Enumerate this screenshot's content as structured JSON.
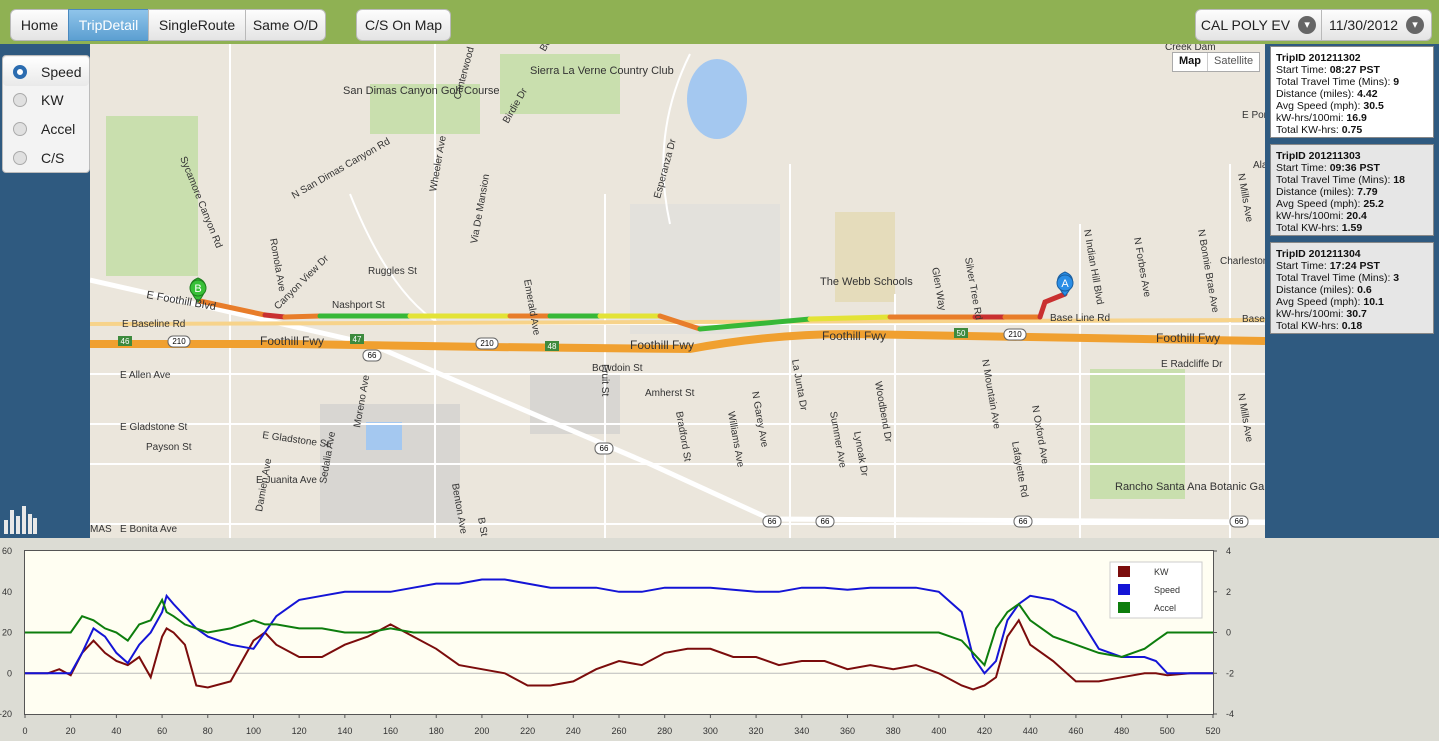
{
  "nav": {
    "home": "Home",
    "tripdetail": "TripDetail",
    "singleroute": "SingleRoute",
    "sameod": "Same O/D",
    "csonmap": "C/S On Map"
  },
  "selectors": {
    "vehicle": "CAL POLY EV",
    "date": "11/30/2012"
  },
  "modes": [
    "Speed",
    "KW",
    "Accel",
    "C/S"
  ],
  "maptype": {
    "map": "Map",
    "satellite": "Satellite"
  },
  "map": {
    "places": [
      "San Dimas Canyon Golf Course",
      "Sierra La Verne Country Club",
      "The Webb Schools",
      "Rancho Santa Ana Botanic Garden"
    ],
    "streets": [
      "E Foothill Blvd",
      "E Baseline Rd",
      "Foothill Fwy",
      "Base Line Rd",
      "E Allen Ave",
      "E Gladstone St",
      "Payson St",
      "E Juanita Ave",
      "E Bonita Ave",
      "Nashport St",
      "Ruggles St",
      "Bowdoin St",
      "Amherst St",
      "E Radcliffe Dr",
      "Esperanza Dr",
      "Wheeler Ave",
      "Canterwood",
      "Via De Mansion",
      "Romola Ave",
      "Canyon View Dr",
      "Sycamore Canyon Rd",
      "N San Dimas Canyon Rd",
      "Moreno Ave",
      "Damien Ave",
      "Sedalia Ave",
      "Emerald Ave",
      "Fruit St",
      "Bradford St",
      "Williams Ave",
      "N Garey Ave",
      "La Junta Dr",
      "Summer Ave",
      "Lynoak Dr",
      "Woodbend Dr",
      "Glen Way",
      "Silver Tree Rd",
      "N Mountain Ave",
      "N Oxford Ave",
      "Lafayette Rd",
      "N Indian Hill Blvd",
      "N Forbes Ave",
      "N Bonnie Brae Ave",
      "N Mills Ave",
      "Charleston",
      "Benton Ave",
      "B St",
      "Birdie Dr",
      "Bogie",
      "Creek Dam",
      "E Pome",
      "Ala",
      "Base",
      "MAS"
    ],
    "shields": [
      "210",
      "66",
      "46",
      "47",
      "48",
      "50"
    ],
    "markers": {
      "start": "A",
      "end": "B"
    }
  },
  "trips": [
    {
      "id_label": "TripID 201211302",
      "start": "08:27 PST",
      "travel": "9",
      "distance": "4.42",
      "speed": "30.5",
      "kwh100": "16.9",
      "kwh": "0.75"
    },
    {
      "id_label": "TripID 201211303",
      "start": "09:36 PST",
      "travel": "18",
      "distance": "7.79",
      "speed": "25.2",
      "kwh100": "20.4",
      "kwh": "1.59"
    },
    {
      "id_label": "TripID 201211304",
      "start": "17:24 PST",
      "travel": "3",
      "distance": "0.6",
      "speed": "10.1",
      "kwh100": "30.7",
      "kwh": "0.18"
    }
  ],
  "trip_labels": {
    "start": "Start Time:",
    "travel": "Total Travel Time (Mins):",
    "distance": "Distance (miles):",
    "speed": "Avg Speed (mph):",
    "kwh100": "kW-hrs/100mi:",
    "kwh": "Total KW-hrs:"
  },
  "colors": {
    "kw": "#7b0c0c",
    "speed": "#1414d6",
    "accel": "#0d7d0d",
    "topbar": "#8fb153",
    "active": "#5c9fd1"
  },
  "chart_data": {
    "type": "line",
    "x": [
      0,
      10,
      15,
      20,
      25,
      30,
      35,
      40,
      45,
      50,
      55,
      60,
      62,
      65,
      70,
      75,
      80,
      90,
      100,
      105,
      110,
      120,
      130,
      140,
      150,
      160,
      170,
      180,
      190,
      200,
      210,
      220,
      230,
      240,
      250,
      260,
      270,
      280,
      290,
      300,
      310,
      320,
      330,
      340,
      350,
      360,
      370,
      380,
      390,
      400,
      410,
      415,
      420,
      425,
      430,
      435,
      440,
      450,
      460,
      470,
      480,
      490,
      495,
      500,
      510,
      520
    ],
    "series": [
      {
        "name": "KW",
        "axis": "left",
        "values": [
          0,
          0,
          2,
          -1,
          10,
          16,
          10,
          6,
          4,
          8,
          -2,
          18,
          22,
          20,
          14,
          -6,
          -7,
          -4,
          16,
          20,
          14,
          8,
          8,
          14,
          18,
          24,
          18,
          12,
          4,
          2,
          0,
          -6,
          -6,
          -4,
          2,
          6,
          4,
          10,
          12,
          12,
          8,
          8,
          4,
          6,
          6,
          2,
          4,
          2,
          4,
          0,
          -6,
          -8,
          -6,
          -2,
          18,
          26,
          14,
          6,
          -4,
          -4,
          -2,
          0,
          0,
          -1,
          0,
          0
        ]
      },
      {
        "name": "Speed",
        "axis": "left",
        "values": [
          0,
          0,
          0,
          0,
          10,
          22,
          18,
          10,
          5,
          14,
          20,
          30,
          38,
          34,
          28,
          22,
          18,
          14,
          12,
          20,
          28,
          36,
          38,
          40,
          40,
          40,
          42,
          44,
          44,
          46,
          46,
          44,
          42,
          42,
          42,
          40,
          40,
          42,
          42,
          42,
          41,
          40,
          40,
          42,
          42,
          41,
          42,
          42,
          42,
          40,
          30,
          8,
          0,
          6,
          26,
          34,
          38,
          36,
          30,
          12,
          8,
          8,
          6,
          0,
          0,
          0
        ]
      },
      {
        "name": "Accel",
        "axis": "right",
        "values": [
          0,
          0,
          0,
          0,
          0.8,
          0.6,
          0.2,
          0,
          -0.4,
          0.4,
          0.6,
          1.6,
          1.0,
          0.8,
          0.4,
          0.2,
          0,
          0.2,
          0.6,
          0.4,
          0.4,
          0.2,
          0.2,
          0,
          0,
          0.2,
          0,
          0,
          0,
          0,
          0,
          0,
          0,
          0,
          0,
          0,
          0,
          0,
          0,
          0,
          0,
          0,
          0,
          0,
          0,
          0,
          0,
          0,
          0,
          0,
          -0.4,
          -1.0,
          -1.6,
          0.2,
          1.0,
          1.4,
          0.6,
          -0.2,
          -0.6,
          -1.0,
          -1.2,
          -0.8,
          -0.4,
          0,
          0,
          0
        ]
      }
    ],
    "legend": [
      "KW",
      "Speed",
      "Accel"
    ],
    "legend_position": "top-right",
    "xlim": [
      0,
      520
    ],
    "ylim": [
      -20,
      60
    ],
    "y2lim": [
      -4,
      4
    ],
    "xticks": [
      0,
      20,
      40,
      60,
      80,
      100,
      120,
      140,
      160,
      180,
      200,
      220,
      240,
      260,
      280,
      300,
      320,
      340,
      360,
      380,
      400,
      420,
      440,
      460,
      480,
      500,
      520
    ],
    "yticks": [
      -20,
      0,
      20,
      40,
      60
    ],
    "y2ticks": [
      -4,
      -2,
      0,
      2,
      4
    ]
  }
}
